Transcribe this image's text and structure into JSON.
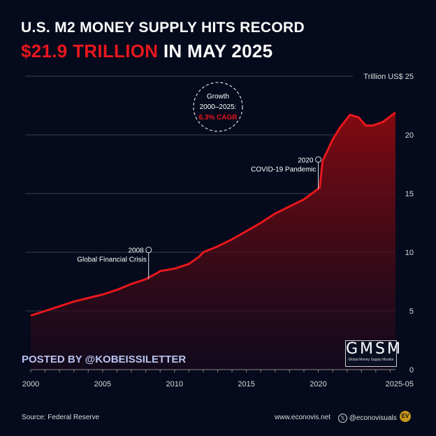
{
  "title_line1": "U.S. M2 MONEY SUPPLY HITS RECORD",
  "title_line2_highlight": "$21.9 TRILLION",
  "title_line2_rest": " IN MAY 2025",
  "posted_by": "POSTED BY @KOBEISSILETTER",
  "logo": {
    "big": "GMSM",
    "small": "Global Money Supply Monitor"
  },
  "footer": {
    "source": "Source: Federal Reserve",
    "website": "www.econovis.net",
    "social": "@econovisuals",
    "social_icon": "x-icon",
    "brand_badge": "EV"
  },
  "colors": {
    "background": "#050a1c",
    "line": "#e8171c",
    "highlight": "#e8171c"
  },
  "chart_data": {
    "type": "area",
    "ylabel": "Trillion US$",
    "ylim": [
      0,
      25
    ],
    "yticks": [
      0,
      5,
      10,
      15,
      20,
      25
    ],
    "xlim": [
      2000,
      2025.37
    ],
    "xtick_labels": [
      "2000",
      "2005",
      "2010",
      "2015",
      "2020",
      "2025-05"
    ],
    "xtick_values": [
      2000,
      2005,
      2010,
      2015,
      2020,
      2025.37
    ],
    "grid": true,
    "annotations": [
      {
        "x": 2008.2,
        "y": 7.7,
        "year": "2008",
        "label": "Global Financial Crisis"
      },
      {
        "x": 2020.0,
        "y": 15.4,
        "year": "2020",
        "label": "COVID-19 Pandemic"
      }
    ],
    "callout": {
      "line1": "Growth",
      "line2": "2000–2025:",
      "line3": "6.3% CAGR"
    },
    "x": [
      2000,
      2001,
      2002,
      2003,
      2004,
      2005,
      2006,
      2007,
      2008,
      2008.9,
      2009,
      2010,
      2011,
      2011.7,
      2012,
      2013,
      2014,
      2015,
      2016,
      2017,
      2018,
      2019,
      2020.1,
      2020.3,
      2020.5,
      2021,
      2021.5,
      2022.2,
      2022.8,
      2023.3,
      2023.8,
      2024.5,
      2025.37
    ],
    "values": [
      4.6,
      5.0,
      5.4,
      5.8,
      6.1,
      6.4,
      6.8,
      7.3,
      7.7,
      8.3,
      8.4,
      8.6,
      9.0,
      9.6,
      10.0,
      10.5,
      11.1,
      11.8,
      12.5,
      13.3,
      13.9,
      14.5,
      15.5,
      17.8,
      18.3,
      19.6,
      20.6,
      21.7,
      21.5,
      20.8,
      20.8,
      21.1,
      21.9
    ]
  }
}
